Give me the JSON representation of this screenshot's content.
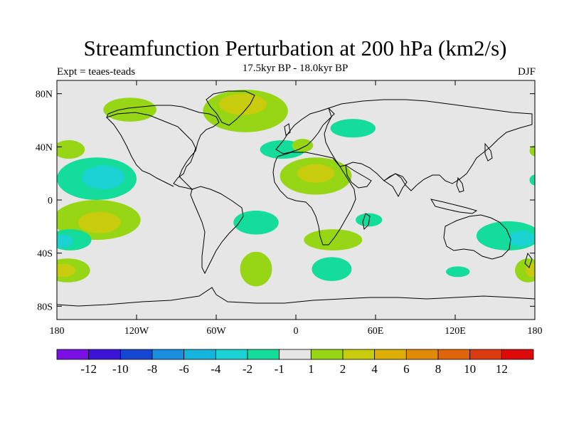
{
  "title": "Streamfunction Perturbation at 200 hPa (km2/s)",
  "subtitle": "17.5kyr BP - 18.0kyr BP",
  "expt_label": "Expt = teaes-teads",
  "season": "DJF",
  "colors": {
    "background_field": "#e6e6e6",
    "coastline": "#000000"
  },
  "chart_data": {
    "type": "heatmap",
    "projection": "cylindrical-equidistant",
    "variable": "streamfunction perturbation",
    "units": "km2/s",
    "level": "200 hPa",
    "x_range": [
      -180,
      180
    ],
    "y_range": [
      -90,
      90
    ],
    "lat_ticks": [
      "80N",
      "40N",
      "0",
      "40S",
      "80S"
    ],
    "lat_tick_values": [
      80,
      40,
      0,
      -40,
      -80
    ],
    "lon_ticks": [
      "180",
      "120W",
      "60W",
      "0",
      "60E",
      "120E",
      "180"
    ],
    "lon_tick_values": [
      -180,
      -120,
      -60,
      0,
      60,
      120,
      180
    ],
    "colorbar_labels": [
      "-12",
      "-10",
      "-8",
      "-6",
      "-4",
      "-2",
      "-1",
      "1",
      "2",
      "4",
      "6",
      "8",
      "10",
      "12"
    ],
    "colorbar_colors": [
      "#7a10e6",
      "#3c14d8",
      "#1446d2",
      "#1c8ee0",
      "#14b4dc",
      "#1ad2d2",
      "#14dc9a",
      "#e6e6e6",
      "#96d614",
      "#c8cc0c",
      "#dcae06",
      "#e08a06",
      "#e0640a",
      "#dc3a10",
      "#dc0a0a"
    ],
    "regions": [
      {
        "name": "na-arctic-pos",
        "lon": -125,
        "lat": 68,
        "rlon": 20,
        "rlat": 9,
        "color": "#96d614"
      },
      {
        "name": "greenland-pos",
        "lon": -38,
        "lat": 67,
        "rlon": 32,
        "rlat": 16,
        "color": "#96d614"
      },
      {
        "name": "greenland-inner",
        "lon": -40,
        "lat": 72,
        "rlon": 18,
        "rlat": 8,
        "color": "#c8cc0c"
      },
      {
        "name": "siberia-neg",
        "lon": 43,
        "lat": 54,
        "rlon": 17,
        "rlat": 7,
        "color": "#14dc9a"
      },
      {
        "name": "atlantic-neg",
        "lon": -10,
        "lat": 38,
        "rlon": 17,
        "rlat": 7,
        "color": "#14dc9a"
      },
      {
        "name": "med-pos",
        "lon": 5,
        "lat": 41,
        "rlon": 8,
        "rlat": 5,
        "color": "#96d614"
      },
      {
        "name": "pacific-w-pos",
        "lon": -171,
        "lat": 38,
        "rlon": 12,
        "rlat": 7,
        "color": "#96d614"
      },
      {
        "name": "pacific-neg",
        "lon": -150,
        "lat": 16,
        "rlon": 30,
        "rlat": 16,
        "color": "#14dc9a"
      },
      {
        "name": "pacific-neg-core",
        "lon": -145,
        "lat": 17,
        "rlon": 16,
        "rlat": 9,
        "color": "#1ad2d2"
      },
      {
        "name": "africa-pos",
        "lon": 15,
        "lat": 18,
        "rlon": 27,
        "rlat": 14,
        "color": "#96d614"
      },
      {
        "name": "africa-core",
        "lon": 15,
        "lat": 20,
        "rlon": 14,
        "rlat": 7,
        "color": "#c8cc0c"
      },
      {
        "name": "s-pacific-pos",
        "lon": -150,
        "lat": -15,
        "rlon": 33,
        "rlat": 15,
        "color": "#96d614"
      },
      {
        "name": "s-pacific-core",
        "lon": -148,
        "lat": -17,
        "rlon": 16,
        "rlat": 8,
        "color": "#c8cc0c"
      },
      {
        "name": "s-pacific-neg",
        "lon": -170,
        "lat": -30,
        "rlon": 16,
        "rlat": 8,
        "color": "#14dc9a"
      },
      {
        "name": "s-pacific-neg-core",
        "lon": -176,
        "lat": -31,
        "rlon": 8,
        "rlat": 5,
        "color": "#1ad2d2"
      },
      {
        "name": "s-atlantic-neg",
        "lon": -30,
        "lat": -17,
        "rlon": 17,
        "rlat": 9,
        "color": "#14dc9a"
      },
      {
        "name": "madagascar-neg",
        "lon": 55,
        "lat": -15,
        "rlon": 10,
        "rlat": 5,
        "color": "#14dc9a"
      },
      {
        "name": "s-africa-pos",
        "lon": 28,
        "lat": -30,
        "rlon": 22,
        "rlat": 8,
        "color": "#96d614"
      },
      {
        "name": "s-atlantic-pos",
        "lon": -30,
        "lat": -52,
        "rlon": 12,
        "rlat": 13,
        "color": "#96d614"
      },
      {
        "name": "s-indian-neg",
        "lon": 27,
        "lat": -52,
        "rlon": 15,
        "rlat": 9,
        "color": "#14dc9a"
      },
      {
        "name": "tasman-neg",
        "lon": 122,
        "lat": -54,
        "rlon": 9,
        "rlat": 4,
        "color": "#14dc9a"
      },
      {
        "name": "s-pacific-w-pos",
        "lon": -172,
        "lat": -53,
        "rlon": 17,
        "rlat": 9,
        "color": "#96d614"
      },
      {
        "name": "s-pacific-w-core",
        "lon": -175,
        "lat": -53,
        "rlon": 9,
        "rlat": 5,
        "color": "#c8cc0c"
      },
      {
        "name": "australia-neg",
        "lon": 160,
        "lat": -27,
        "rlon": 24,
        "rlat": 11,
        "color": "#14dc9a"
      },
      {
        "name": "australia-core",
        "lon": 170,
        "lat": -29,
        "rlon": 10,
        "rlat": 6,
        "color": "#1ad2d2"
      },
      {
        "name": "nz-pos",
        "lon": 175,
        "lat": -53,
        "rlon": 10,
        "rlat": 9,
        "color": "#96d614"
      },
      {
        "name": "nz-core",
        "lon": 178,
        "lat": -53,
        "rlon": 5,
        "rlat": 5,
        "color": "#c8cc0c"
      },
      {
        "name": "e-pacific-pos",
        "lon": 180,
        "lat": 37,
        "rlon": 4,
        "rlat": 4,
        "color": "#96d614"
      },
      {
        "name": "e-pacific-neg",
        "lon": 180,
        "lat": 15,
        "rlon": 4,
        "rlat": 4,
        "color": "#14dc9a"
      }
    ]
  }
}
